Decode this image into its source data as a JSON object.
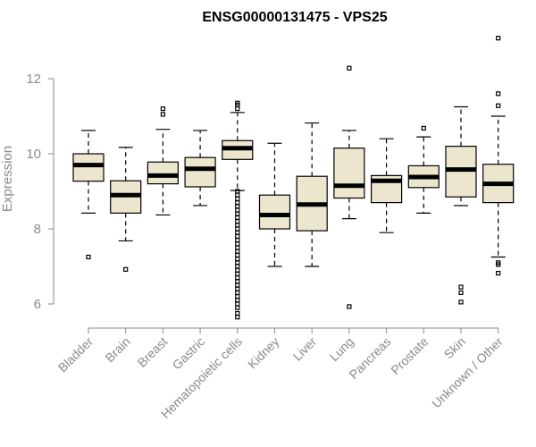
{
  "chart_data": {
    "type": "box",
    "title": "ENSG00000131475 - VPS25",
    "ylabel": "Expression",
    "xlabel": "",
    "ylim": [
      5.5,
      13.3
    ],
    "yticks": [
      6,
      8,
      10,
      12
    ],
    "grid": false,
    "colors": {
      "box_fill": "#ede6cf",
      "stroke": "#000000",
      "axis_text": "#8a8a8a"
    },
    "categories": [
      "Bladder",
      "Brain",
      "Breast",
      "Gastric",
      "Hematopoietic cells",
      "Kidney",
      "Liver",
      "Lung",
      "Pancreas",
      "Prostate",
      "Skin",
      "Unknown / Other"
    ],
    "boxes": [
      {
        "name": "Bladder",
        "whisker_low": 8.42,
        "q1": 9.27,
        "median": 9.7,
        "q3": 10.0,
        "whisker_high": 10.62,
        "outliers": [
          7.25
        ]
      },
      {
        "name": "Brain",
        "whisker_low": 7.68,
        "q1": 8.42,
        "median": 8.9,
        "q3": 9.28,
        "whisker_high": 10.17,
        "outliers": [
          6.92
        ]
      },
      {
        "name": "Breast",
        "whisker_low": 8.37,
        "q1": 9.2,
        "median": 9.42,
        "q3": 9.78,
        "whisker_high": 10.65,
        "outliers": [
          11.05,
          11.2
        ]
      },
      {
        "name": "Gastric",
        "whisker_low": 8.62,
        "q1": 9.12,
        "median": 9.6,
        "q3": 9.9,
        "whisker_high": 10.62,
        "outliers": []
      },
      {
        "name": "Hematopoietic cells",
        "whisker_low": 9.02,
        "q1": 9.85,
        "median": 10.15,
        "q3": 10.35,
        "whisker_high": 11.1,
        "outliers": [
          11.2,
          11.3,
          11.35,
          9.0,
          8.9,
          8.8,
          8.7,
          8.6,
          8.5,
          8.4,
          8.3,
          8.2,
          8.1,
          8.0,
          7.9,
          7.8,
          7.7,
          7.6,
          7.5,
          7.4,
          7.3,
          7.2,
          7.1,
          7.0,
          6.9,
          6.8,
          6.7,
          6.6,
          6.5,
          6.4,
          6.3,
          6.2,
          6.1,
          6.0,
          5.9,
          5.75,
          5.65
        ]
      },
      {
        "name": "Kidney",
        "whisker_low": 7.0,
        "q1": 8.0,
        "median": 8.37,
        "q3": 8.9,
        "whisker_high": 10.28,
        "outliers": []
      },
      {
        "name": "Liver",
        "whisker_low": 7.0,
        "q1": 7.95,
        "median": 8.65,
        "q3": 9.4,
        "whisker_high": 10.82,
        "outliers": []
      },
      {
        "name": "Lung",
        "whisker_low": 8.27,
        "q1": 8.82,
        "median": 9.15,
        "q3": 10.15,
        "whisker_high": 10.62,
        "outliers": [
          12.28,
          5.93
        ]
      },
      {
        "name": "Pancreas",
        "whisker_low": 7.9,
        "q1": 8.7,
        "median": 9.28,
        "q3": 9.42,
        "whisker_high": 10.4,
        "outliers": []
      },
      {
        "name": "Prostate",
        "whisker_low": 8.42,
        "q1": 9.1,
        "median": 9.38,
        "q3": 9.68,
        "whisker_high": 10.45,
        "outliers": [
          10.68
        ]
      },
      {
        "name": "Skin",
        "whisker_low": 8.62,
        "q1": 8.85,
        "median": 9.58,
        "q3": 10.2,
        "whisker_high": 11.25,
        "outliers": [
          6.45,
          6.3,
          6.05
        ]
      },
      {
        "name": "Unknown / Other",
        "whisker_low": 7.25,
        "q1": 8.7,
        "median": 9.2,
        "q3": 9.72,
        "whisker_high": 11.0,
        "outliers": [
          13.08,
          11.6,
          11.28,
          7.1,
          7.05,
          6.82
        ]
      }
    ]
  }
}
